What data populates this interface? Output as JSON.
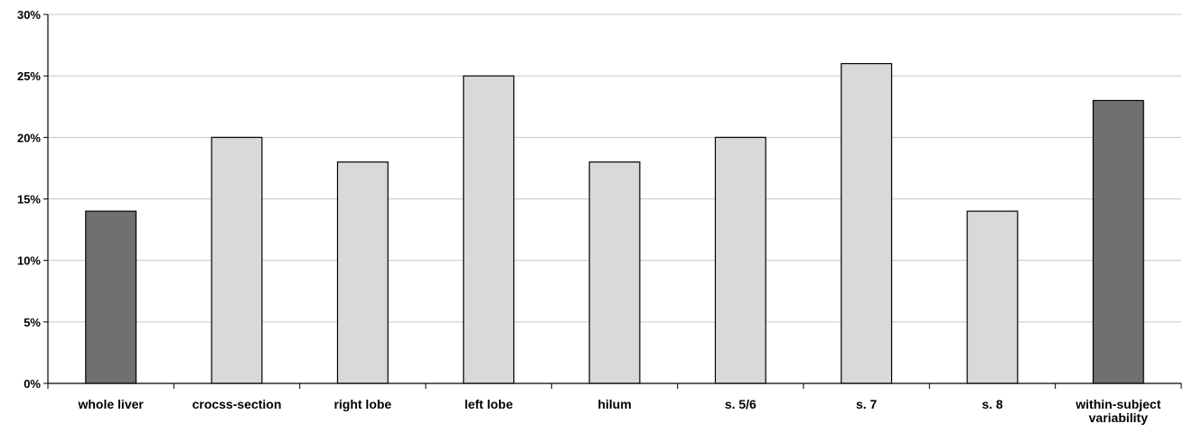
{
  "chart_data": {
    "type": "bar",
    "categories": [
      "whole liver",
      "crocss-section",
      "right lobe",
      "left lobe",
      "hilum",
      "s. 5/6",
      "s. 7",
      "s. 8",
      "within-subject variability"
    ],
    "category_lines": [
      [
        "whole liver"
      ],
      [
        "crocss-section"
      ],
      [
        "right lobe"
      ],
      [
        "left lobe"
      ],
      [
        "hilum"
      ],
      [
        "s. 5/6"
      ],
      [
        "s. 7"
      ],
      [
        "s. 8"
      ],
      [
        "within-subject",
        "variability"
      ]
    ],
    "values": [
      14,
      20,
      18,
      25,
      18,
      20,
      26,
      14,
      23
    ],
    "bar_colors": [
      "#707070",
      "#d9d9d9",
      "#d9d9d9",
      "#d9d9d9",
      "#d9d9d9",
      "#d9d9d9",
      "#d9d9d9",
      "#d9d9d9",
      "#707070"
    ],
    "bar_outline_color": "#000000",
    "ylim": [
      0,
      30
    ],
    "yticks": [
      0,
      5,
      10,
      15,
      20,
      25,
      30
    ],
    "ytick_labels": [
      "0%",
      "5%",
      "10%",
      "15%",
      "20%",
      "25%",
      "30%"
    ],
    "grid": true,
    "grid_color": "#c8c8c8",
    "title": "",
    "xlabel": "",
    "ylabel": "",
    "legend": "none"
  }
}
